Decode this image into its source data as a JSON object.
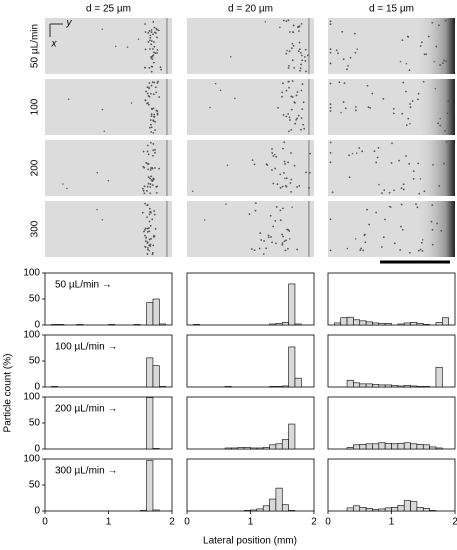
{
  "column_titles": [
    "d = 25 µm",
    "d = 20 µm",
    "d = 15 µm"
  ],
  "row_labels": [
    "50 µL/min",
    "100",
    "200",
    "300"
  ],
  "image_axes": {
    "x": "x",
    "y": "y"
  },
  "y_label": "Particle count (%)",
  "x_label": "Lateral position (mm)",
  "chart_data": [
    {
      "type": "histogram",
      "annotation": "50 µL/min →",
      "bins": [
        0,
        0.1,
        0.2,
        0.3,
        0.4,
        0.5,
        0.6,
        0.7,
        0.8,
        0.9,
        1,
        1.1,
        1.2,
        1.3,
        1.4,
        1.5,
        1.6,
        1.7,
        1.8,
        1.9,
        2
      ],
      "values": [
        0,
        1,
        1,
        0,
        0,
        1,
        0,
        0,
        0,
        0,
        1,
        0,
        0,
        0,
        1,
        0,
        43,
        50,
        2,
        0
      ],
      "color": "#d9d9d9",
      "xlim": [
        0,
        2
      ],
      "ylim": [
        0,
        100
      ],
      "yticks": [
        0,
        50,
        100
      ]
    },
    {
      "type": "histogram",
      "bins": [
        0,
        0.1,
        0.2,
        0.3,
        0.4,
        0.5,
        0.6,
        0.7,
        0.8,
        0.9,
        1,
        1.1,
        1.2,
        1.3,
        1.4,
        1.5,
        1.6,
        1.7,
        1.8,
        1.9,
        2
      ],
      "values": [
        0,
        1,
        0,
        0,
        0,
        0,
        0,
        0,
        0,
        0,
        0,
        0,
        0,
        2,
        3,
        5,
        79,
        2,
        0,
        0
      ],
      "color": "#d9d9d9",
      "xlim": [
        0,
        2
      ],
      "ylim": [
        0,
        100
      ]
    },
    {
      "type": "histogram",
      "bins": [
        0,
        0.1,
        0.2,
        0.3,
        0.4,
        0.5,
        0.6,
        0.7,
        0.8,
        0.9,
        1,
        1.1,
        1.2,
        1.3,
        1.4,
        1.5,
        1.6,
        1.7,
        1.8,
        1.9,
        2
      ],
      "values": [
        0,
        4,
        14,
        15,
        10,
        8,
        6,
        4,
        3,
        3,
        0,
        2,
        4,
        5,
        3,
        1,
        0,
        5,
        14,
        0
      ],
      "color": "#d9d9d9",
      "xlim": [
        0,
        2
      ],
      "ylim": [
        0,
        100
      ]
    },
    {
      "type": "histogram",
      "annotation": "100 µL/min →",
      "bins": [
        0,
        0.1,
        0.2,
        0.3,
        0.4,
        0.5,
        0.6,
        0.7,
        0.8,
        0.9,
        1,
        1.1,
        1.2,
        1.3,
        1.4,
        1.5,
        1.6,
        1.7,
        1.8,
        1.9,
        2
      ],
      "values": [
        0,
        1,
        0,
        0,
        0,
        0,
        0,
        0,
        0,
        0,
        0,
        0,
        0,
        0,
        0,
        0,
        56,
        41,
        1,
        0
      ],
      "color": "#d9d9d9",
      "xlim": [
        0,
        2
      ],
      "ylim": [
        0,
        100
      ],
      "yticks": [
        0,
        50,
        100
      ]
    },
    {
      "type": "histogram",
      "bins": [
        0,
        0.1,
        0.2,
        0.3,
        0.4,
        0.5,
        0.6,
        0.7,
        0.8,
        0.9,
        1,
        1.1,
        1.2,
        1.3,
        1.4,
        1.5,
        1.6,
        1.7,
        1.8,
        1.9,
        2
      ],
      "values": [
        0,
        0,
        0,
        0,
        0,
        0,
        1,
        0,
        0,
        0,
        0,
        0,
        0,
        1,
        1,
        2,
        77,
        17,
        0,
        0
      ],
      "color": "#d9d9d9",
      "xlim": [
        0,
        2
      ],
      "ylim": [
        0,
        100
      ]
    },
    {
      "type": "histogram",
      "bins": [
        0,
        0.1,
        0.2,
        0.3,
        0.4,
        0.5,
        0.6,
        0.7,
        0.8,
        0.9,
        1,
        1.1,
        1.2,
        1.3,
        1.4,
        1.5,
        1.6,
        1.7,
        1.8,
        1.9,
        2
      ],
      "values": [
        0,
        0,
        0,
        13,
        8,
        6,
        6,
        5,
        4,
        4,
        3,
        2,
        3,
        2,
        1,
        1,
        0,
        38,
        0,
        0
      ],
      "color": "#d9d9d9",
      "xlim": [
        0,
        2
      ],
      "ylim": [
        0,
        100
      ]
    },
    {
      "type": "histogram",
      "annotation": "200 µL/min →",
      "bins": [
        0,
        0.1,
        0.2,
        0.3,
        0.4,
        0.5,
        0.6,
        0.7,
        0.8,
        0.9,
        1,
        1.1,
        1.2,
        1.3,
        1.4,
        1.5,
        1.6,
        1.7,
        1.8,
        1.9,
        2
      ],
      "values": [
        0,
        0,
        0,
        0,
        0,
        0,
        0,
        0,
        0,
        0,
        0,
        0,
        0,
        0,
        0,
        0,
        99,
        1,
        0,
        0
      ],
      "color": "#d9d9d9",
      "xlim": [
        0,
        2
      ],
      "ylim": [
        0,
        100
      ],
      "yticks": [
        0,
        50,
        100
      ]
    },
    {
      "type": "histogram",
      "bins": [
        0,
        0.1,
        0.2,
        0.3,
        0.4,
        0.5,
        0.6,
        0.7,
        0.8,
        0.9,
        1,
        1.1,
        1.2,
        1.3,
        1.4,
        1.5,
        1.6,
        1.7,
        1.8,
        1.9,
        2
      ],
      "values": [
        0,
        0,
        0,
        0,
        0,
        0,
        2,
        2,
        3,
        3,
        2,
        2,
        3,
        8,
        10,
        18,
        48,
        0,
        0,
        0
      ],
      "color": "#d9d9d9",
      "xlim": [
        0,
        2
      ],
      "ylim": [
        0,
        100
      ]
    },
    {
      "type": "histogram",
      "bins": [
        0,
        0.1,
        0.2,
        0.3,
        0.4,
        0.5,
        0.6,
        0.7,
        0.8,
        0.9,
        1,
        1.1,
        1.2,
        1.3,
        1.4,
        1.5,
        1.6,
        1.7,
        1.8,
        1.9,
        2
      ],
      "values": [
        0,
        0,
        0,
        3,
        8,
        9,
        10,
        10,
        12,
        11,
        10,
        11,
        12,
        10,
        9,
        8,
        4,
        2,
        0,
        0
      ],
      "color": "#d9d9d9",
      "xlim": [
        0,
        2
      ],
      "ylim": [
        0,
        100
      ]
    },
    {
      "type": "histogram",
      "annotation": "300 µL/min →",
      "bins": [
        0,
        0.1,
        0.2,
        0.3,
        0.4,
        0.5,
        0.6,
        0.7,
        0.8,
        0.9,
        1,
        1.1,
        1.2,
        1.3,
        1.4,
        1.5,
        1.6,
        1.7,
        1.8,
        1.9,
        2
      ],
      "values": [
        0,
        0,
        0,
        0,
        0,
        0,
        0,
        0,
        0,
        0,
        0,
        0,
        0,
        0,
        0,
        1,
        97,
        2,
        0,
        0
      ],
      "color": "#d9d9d9",
      "xlim": [
        0,
        2
      ],
      "ylim": [
        0,
        100
      ],
      "yticks": [
        0,
        50,
        100
      ],
      "xticks": [
        0,
        1,
        2
      ]
    },
    {
      "type": "histogram",
      "bins": [
        0,
        0.1,
        0.2,
        0.3,
        0.4,
        0.5,
        0.6,
        0.7,
        0.8,
        0.9,
        1,
        1.1,
        1.2,
        1.3,
        1.4,
        1.5,
        1.6,
        1.7,
        1.8,
        1.9,
        2
      ],
      "values": [
        0,
        0,
        0,
        0,
        0,
        0,
        0,
        0,
        0,
        1,
        2,
        4,
        10,
        23,
        44,
        12,
        1,
        0,
        0,
        0
      ],
      "color": "#d9d9d9",
      "xlim": [
        0,
        2
      ],
      "ylim": [
        0,
        100
      ],
      "xticks": [
        0,
        1,
        2
      ]
    },
    {
      "type": "histogram",
      "bins": [
        0,
        0.1,
        0.2,
        0.3,
        0.4,
        0.5,
        0.6,
        0.7,
        0.8,
        0.9,
        1,
        1.1,
        1.2,
        1.3,
        1.4,
        1.5,
        1.6,
        1.7,
        1.8,
        1.9,
        2
      ],
      "values": [
        0,
        0,
        0,
        6,
        10,
        7,
        5,
        3,
        4,
        6,
        7,
        11,
        20,
        18,
        7,
        5,
        1,
        0,
        0,
        0
      ],
      "color": "#d9d9d9",
      "xlim": [
        0,
        2
      ],
      "ylim": [
        0,
        100
      ],
      "xticks": [
        0,
        1,
        2
      ]
    }
  ]
}
